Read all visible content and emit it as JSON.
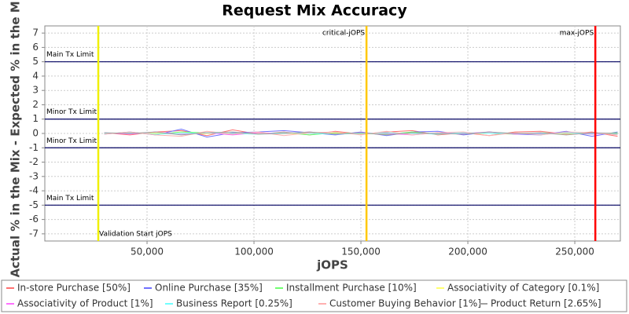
{
  "chart_data": {
    "type": "line",
    "title": "Request Mix Accuracy",
    "x_label": "jOPS",
    "y_label": "Actual % in the Mix - Expected % in the Mix",
    "x": [
      30000,
      42000,
      54000,
      66000,
      78000,
      90000,
      102000,
      114000,
      126000,
      138000,
      150000,
      162000,
      174000,
      186000,
      198000,
      210000,
      222000,
      234000,
      246000,
      258000,
      270000
    ],
    "series": [
      {
        "name": "In-store Purchase [50%]",
        "color": "#ff7070",
        "values": [
          0.05,
          -0.1,
          0.1,
          0.2,
          -0.15,
          0.25,
          -0.05,
          0.1,
          -0.1,
          0.15,
          -0.05,
          0.1,
          0.2,
          -0.1,
          0.05,
          -0.15,
          0.1,
          0.15,
          -0.05,
          0.1,
          -0.2
        ]
      },
      {
        "name": "Online Purchase [35%]",
        "color": "#7070ff",
        "values": [
          -0.05,
          0.1,
          -0.1,
          0.3,
          -0.25,
          0.05,
          0.1,
          0.2,
          0.05,
          -0.1,
          0.1,
          -0.15,
          0.1,
          0.15,
          -0.1,
          0.1,
          -0.05,
          -0.1,
          0.15,
          -0.2,
          0.1
        ]
      },
      {
        "name": "Installment Purchase [10%]",
        "color": "#70ff70",
        "values": [
          0.0,
          0.05,
          -0.05,
          0.1,
          0.05,
          -0.05,
          0.0,
          0.05,
          -0.1,
          0.05,
          0.0,
          -0.05,
          0.1,
          -0.05,
          0.05,
          0.0,
          -0.05,
          0.05,
          0.0,
          -0.05,
          0.05
        ]
      },
      {
        "name": "Associativity of Category [0.1%]",
        "color": "#ffff70",
        "values": [
          0.0,
          0.0,
          0.02,
          -0.02,
          0.0,
          0.01,
          0.0,
          -0.01,
          0.02,
          0.0,
          -0.02,
          0.0,
          0.01,
          0.0,
          -0.01,
          0.0,
          0.02,
          0.0,
          -0.01,
          0.0,
          0.01
        ]
      },
      {
        "name": "Associativity of Product [1%]",
        "color": "#ff70ff",
        "values": [
          0.05,
          -0.05,
          0.1,
          -0.05,
          0.05,
          -0.1,
          0.05,
          0.0,
          0.1,
          -0.05,
          0.05,
          0.0,
          -0.1,
          0.05,
          0.0,
          0.1,
          -0.05,
          0.0,
          0.05,
          -0.05,
          0.0
        ]
      },
      {
        "name": "Business Report [0.25%]",
        "color": "#70ffff",
        "values": [
          0.0,
          0.05,
          -0.05,
          0.0,
          0.05,
          0.0,
          -0.05,
          0.05,
          0.0,
          -0.05,
          0.0,
          0.05,
          0.0,
          -0.05,
          0.05,
          0.0,
          0.0,
          -0.05,
          0.05,
          0.0,
          -0.05
        ]
      },
      {
        "name": "Customer Buying Behavior [1%]",
        "color": "#ffb0b0",
        "values": [
          -0.05,
          0.1,
          -0.1,
          -0.2,
          0.15,
          -0.05,
          0.1,
          -0.15,
          0.05,
          0.1,
          -0.1,
          0.15,
          -0.1,
          0.05,
          0.1,
          -0.15,
          0.05,
          -0.1,
          0.1,
          0.05,
          -0.1
        ]
      },
      {
        "name": "Product Return [2.65%]",
        "color": "#a0a0a0",
        "values": [
          0.05,
          0.0,
          0.1,
          -0.1,
          0.05,
          0.1,
          -0.05,
          0.0,
          0.1,
          -0.05,
          0.05,
          -0.1,
          0.05,
          0.0,
          -0.05,
          0.1,
          0.0,
          0.05,
          -0.1,
          0.05,
          0.0
        ]
      }
    ],
    "xlim": [
      2200,
      271300
    ],
    "xticks": [
      {
        "value": 50000,
        "label": "50,000"
      },
      {
        "value": 100000,
        "label": "100,000"
      },
      {
        "value": 150000,
        "label": "150,000"
      },
      {
        "value": 200000,
        "label": "200,000"
      },
      {
        "value": 250000,
        "label": "250,000"
      }
    ],
    "ylim": [
      -7.5,
      7.5
    ],
    "yticks": [
      -7,
      -6,
      -5,
      -4,
      -3,
      -2,
      -1,
      0,
      1,
      2,
      3,
      4,
      5,
      6,
      7
    ],
    "grid": true,
    "x_markers": [
      {
        "label": "Validation Start jOPS",
        "value": 27200,
        "color": "#f0f000"
      },
      {
        "label": "critical-jOPS",
        "value": 152600,
        "color": "#ffc800"
      },
      {
        "label": "max-jOPS",
        "value": 259600,
        "color": "#ff0000"
      }
    ],
    "y_markers": [
      {
        "label": "Main Tx Limit",
        "value": 5
      },
      {
        "label": "Minor Tx Limit",
        "value": 1
      },
      {
        "label": "Minor Tx Limit",
        "value": -1
      },
      {
        "label": "Main Tx Limit",
        "value": -5
      }
    ],
    "legend": "bottom"
  }
}
